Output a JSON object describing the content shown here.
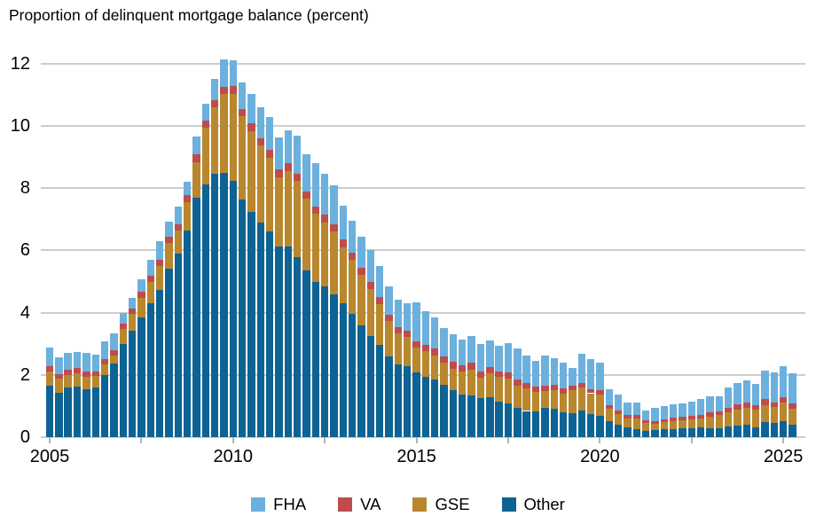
{
  "title": "Proportion of delinquent mortgage balance (percent)",
  "chart_data": {
    "type": "bar",
    "stacked": true,
    "title": "Proportion of delinquent mortgage balance (percent)",
    "xlabel": "",
    "ylabel": "percent",
    "ylim": [
      0,
      12
    ],
    "yticks": [
      0,
      2,
      4,
      6,
      8,
      10,
      12
    ],
    "grid": true,
    "legend_position": "bottom",
    "x_axis_tick_years": [
      2005,
      2007.5,
      2010,
      2012.5,
      2015,
      2017.5,
      2020,
      2022.5,
      2025
    ],
    "x_axis_labels": [
      "2005",
      "2010",
      "2015",
      "2020",
      "2025"
    ],
    "x_axis_label_years": [
      2005,
      2010,
      2015,
      2020,
      2025
    ],
    "grid_color": "#cdcdcd",
    "tick_color": "#b3b3b3",
    "legend_order": [
      "FHA",
      "VA",
      "GSE",
      "Other"
    ],
    "stack_order_bottom_to_top": [
      "Other",
      "GSE",
      "VA",
      "FHA"
    ],
    "colors": {
      "FHA": "#6cb0dd",
      "VA": "#bf4b4b",
      "GSE": "#b9872e",
      "Other": "#0d6394"
    },
    "categories": [
      "2005Q1",
      "2005Q2",
      "2005Q3",
      "2005Q4",
      "2006Q1",
      "2006Q2",
      "2006Q3",
      "2006Q4",
      "2007Q1",
      "2007Q2",
      "2007Q3",
      "2007Q4",
      "2008Q1",
      "2008Q2",
      "2008Q3",
      "2008Q4",
      "2009Q1",
      "2009Q2",
      "2009Q3",
      "2009Q4",
      "2010Q1",
      "2010Q2",
      "2010Q3",
      "2010Q4",
      "2011Q1",
      "2011Q2",
      "2011Q3",
      "2011Q4",
      "2012Q1",
      "2012Q2",
      "2012Q3",
      "2012Q4",
      "2013Q1",
      "2013Q2",
      "2013Q3",
      "2013Q4",
      "2014Q1",
      "2014Q2",
      "2014Q3",
      "2014Q4",
      "2015Q1",
      "2015Q2",
      "2015Q3",
      "2015Q4",
      "2016Q1",
      "2016Q2",
      "2016Q3",
      "2016Q4",
      "2017Q1",
      "2017Q2",
      "2017Q3",
      "2017Q4",
      "2018Q1",
      "2018Q2",
      "2018Q3",
      "2018Q4",
      "2019Q1",
      "2019Q2",
      "2019Q3",
      "2019Q4",
      "2020Q1",
      "2020Q2",
      "2020Q3",
      "2020Q4",
      "2021Q1",
      "2021Q2",
      "2021Q3",
      "2021Q4",
      "2022Q1",
      "2022Q2",
      "2022Q3",
      "2022Q4",
      "2023Q1",
      "2023Q2",
      "2023Q3",
      "2023Q4",
      "2024Q1",
      "2024Q2",
      "2024Q3",
      "2024Q4",
      "2025Q1",
      "2025Q2"
    ],
    "series": [
      {
        "name": "Other",
        "color": "#0d6394",
        "values": [
          1.65,
          1.43,
          1.6,
          1.62,
          1.55,
          1.6,
          2.0,
          2.36,
          2.98,
          3.41,
          3.84,
          4.31,
          4.74,
          5.4,
          5.9,
          6.65,
          7.7,
          8.12,
          8.46,
          8.5,
          8.22,
          7.63,
          7.25,
          6.9,
          6.6,
          6.12,
          6.12,
          5.79,
          5.36,
          4.98,
          4.85,
          4.6,
          4.3,
          3.95,
          3.6,
          3.25,
          2.95,
          2.6,
          2.35,
          2.28,
          2.08,
          1.95,
          1.85,
          1.68,
          1.52,
          1.36,
          1.33,
          1.24,
          1.27,
          1.14,
          1.08,
          0.95,
          0.84,
          0.82,
          0.95,
          0.91,
          0.79,
          0.76,
          0.86,
          0.74,
          0.67,
          0.5,
          0.41,
          0.31,
          0.27,
          0.2,
          0.22,
          0.25,
          0.27,
          0.28,
          0.29,
          0.31,
          0.28,
          0.29,
          0.33,
          0.36,
          0.39,
          0.31,
          0.48,
          0.46,
          0.5,
          0.39
        ]
      },
      {
        "name": "GSE",
        "color": "#b9872e",
        "values": [
          0.47,
          0.44,
          0.4,
          0.43,
          0.38,
          0.36,
          0.34,
          0.27,
          0.5,
          0.55,
          0.62,
          0.67,
          0.76,
          0.85,
          0.75,
          0.9,
          1.14,
          1.81,
          2.14,
          2.53,
          2.81,
          2.68,
          2.59,
          2.46,
          2.38,
          2.24,
          2.43,
          2.43,
          2.29,
          2.19,
          2.05,
          2.0,
          1.8,
          1.75,
          1.62,
          1.5,
          1.32,
          1.12,
          0.98,
          0.93,
          0.8,
          0.8,
          0.78,
          0.72,
          0.68,
          0.74,
          0.84,
          0.66,
          0.78,
          0.79,
          0.81,
          0.7,
          0.73,
          0.64,
          0.54,
          0.59,
          0.62,
          0.74,
          0.74,
          0.67,
          0.69,
          0.41,
          0.33,
          0.29,
          0.33,
          0.26,
          0.21,
          0.23,
          0.25,
          0.26,
          0.28,
          0.29,
          0.37,
          0.41,
          0.46,
          0.53,
          0.54,
          0.56,
          0.55,
          0.52,
          0.6,
          0.51
        ]
      },
      {
        "name": "VA",
        "color": "#bf4b4b",
        "values": [
          0.17,
          0.16,
          0.17,
          0.17,
          0.17,
          0.16,
          0.16,
          0.16,
          0.18,
          0.18,
          0.2,
          0.2,
          0.2,
          0.2,
          0.2,
          0.24,
          0.24,
          0.24,
          0.24,
          0.23,
          0.24,
          0.24,
          0.24,
          0.24,
          0.24,
          0.24,
          0.24,
          0.24,
          0.24,
          0.24,
          0.24,
          0.24,
          0.24,
          0.23,
          0.23,
          0.23,
          0.23,
          0.21,
          0.21,
          0.21,
          0.19,
          0.2,
          0.21,
          0.2,
          0.21,
          0.21,
          0.21,
          0.2,
          0.19,
          0.19,
          0.19,
          0.19,
          0.17,
          0.16,
          0.16,
          0.18,
          0.17,
          0.15,
          0.14,
          0.14,
          0.14,
          0.12,
          0.12,
          0.1,
          0.1,
          0.09,
          0.09,
          0.1,
          0.1,
          0.11,
          0.11,
          0.12,
          0.14,
          0.14,
          0.16,
          0.17,
          0.17,
          0.16,
          0.19,
          0.14,
          0.19,
          0.18
        ]
      },
      {
        "name": "FHA",
        "color": "#6cb0dd",
        "values": [
          0.58,
          0.54,
          0.54,
          0.52,
          0.6,
          0.53,
          0.58,
          0.54,
          0.34,
          0.32,
          0.42,
          0.52,
          0.61,
          0.48,
          0.55,
          0.41,
          0.57,
          0.53,
          0.66,
          0.89,
          0.85,
          0.86,
          0.95,
          1.0,
          1.07,
          1.04,
          1.08,
          1.24,
          1.19,
          1.39,
          1.31,
          1.26,
          1.11,
          1.02,
          1.0,
          1.02,
          1.0,
          0.92,
          0.88,
          0.88,
          1.26,
          1.1,
          1.01,
          0.9,
          0.89,
          0.83,
          0.86,
          0.88,
          0.86,
          0.81,
          0.93,
          1.0,
          0.89,
          0.84,
          0.98,
          0.87,
          0.82,
          0.57,
          0.93,
          0.95,
          0.88,
          0.52,
          0.5,
          0.42,
          0.4,
          0.31,
          0.41,
          0.42,
          0.44,
          0.43,
          0.46,
          0.5,
          0.52,
          0.47,
          0.65,
          0.68,
          0.71,
          0.67,
          0.92,
          0.96,
          0.98,
          0.97
        ]
      }
    ]
  }
}
